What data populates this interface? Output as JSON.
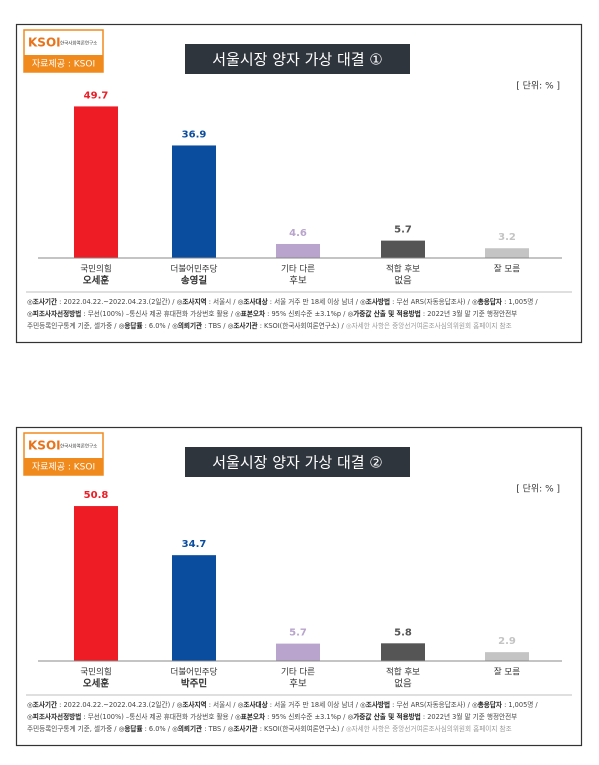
{
  "chart_data": [
    {
      "type": "bar",
      "title": "서울시장 양자 가상 대결 ①",
      "logo": "KSOI",
      "logo_sub": "한국사회여론연구소",
      "source": "자료제공 : KSOI",
      "unit": "[ 단위: % ]",
      "categories": [
        [
          "국민의힘",
          "오세훈"
        ],
        [
          "더불어민주당",
          "송영길"
        ],
        [
          "기타 다른",
          "후보"
        ],
        [
          "적합 후보",
          "없음"
        ],
        [
          "잘 모름"
        ]
      ],
      "values": [
        49.7,
        36.9,
        4.6,
        5.7,
        3.2
      ],
      "colors": [
        "#ee1c25",
        "#0a4d9f",
        "#b8a4cc",
        "#555555",
        "#c4c4c4"
      ],
      "footnote": [
        [
          {
            "label": "◎조사기간",
            "text": " : 2022.04.22.~2022.04.23.(2일간)  / "
          },
          {
            "label": "◎조사지역",
            "text": " : 서울시 / "
          },
          {
            "label": "◎조사대상",
            "text": " : 서울 거주 만 18세 이상 남녀 / "
          },
          {
            "label": "◎조사방법",
            "text": " : 무선 ARS(자동응답조사) / "
          },
          {
            "label": "◎총응답자",
            "text": " : 1,005명 /"
          }
        ],
        [
          {
            "label": "◎피조사자선정방법",
            "text": " : 무선(100%) –통신사 제공 휴대전화 가상번호 활용 / "
          },
          {
            "label": "◎표본오차",
            "text": " : 95% 신뢰수준 ±3.1%p / "
          },
          {
            "label": "◎가중값 산출 및 적용방법",
            "text": " : 2022년 3월 말 기준 행정안전부"
          }
        ],
        [
          {
            "text": "주민등록인구통계 기준, 셀가중 / "
          },
          {
            "label": "◎응답률",
            "text": " : 6.0% / "
          },
          {
            "label": "◎의뢰기관",
            "text": " : TBS / "
          },
          {
            "label": "◎조사기관",
            "text": " : KSOI(한국사회여론연구소) / "
          },
          {
            "note": "◎자세한 사항은 중앙선거여론조사심의위원회 홈페이지 참조"
          }
        ]
      ]
    },
    {
      "type": "bar",
      "title": "서울시장 양자 가상 대결 ②",
      "logo": "KSOI",
      "logo_sub": "한국사회여론연구소",
      "source": "자료제공 : KSOI",
      "unit": "[ 단위: % ]",
      "categories": [
        [
          "국민의힘",
          "오세훈"
        ],
        [
          "더불어민주당",
          "박주민"
        ],
        [
          "기타 다른",
          "후보"
        ],
        [
          "적합 후보",
          "없음"
        ],
        [
          "잘 모름"
        ]
      ],
      "values": [
        50.8,
        34.7,
        5.7,
        5.8,
        2.9
      ],
      "colors": [
        "#ee1c25",
        "#0a4d9f",
        "#b8a4cc",
        "#555555",
        "#c4c4c4"
      ],
      "footnote": [
        [
          {
            "label": "◎조사기간",
            "text": " : 2022.04.22.~2022.04.23.(2일간)  / "
          },
          {
            "label": "◎조사지역",
            "text": " : 서울시 / "
          },
          {
            "label": "◎조사대상",
            "text": " : 서울 거주 만 18세 이상 남녀 / "
          },
          {
            "label": "◎조사방법",
            "text": " : 무선 ARS(자동응답조사) / "
          },
          {
            "label": "◎총응답자",
            "text": " : 1,005명 /"
          }
        ],
        [
          {
            "label": "◎피조사자선정방법",
            "text": " : 무선(100%) –통신사 제공 휴대전화 가상번호 활용 / "
          },
          {
            "label": "◎표본오차",
            "text": " : 95% 신뢰수준 ±3.1%p / "
          },
          {
            "label": "◎가중값 산출 및 적용방법",
            "text": " : 2022년 3월 말 기준 행정안전부"
          }
        ],
        [
          {
            "text": "주민등록인구통계 기준, 셀가중 / "
          },
          {
            "label": "◎응답률",
            "text": " : 6.0% / "
          },
          {
            "label": "◎의뢰기관",
            "text": " : TBS / "
          },
          {
            "label": "◎조사기관",
            "text": " : KSOI(한국사회여론연구소) / "
          },
          {
            "note": "◎자세한 사항은 중앙선거여론조사심의위원회 홈페이지 참조"
          }
        ]
      ]
    }
  ]
}
